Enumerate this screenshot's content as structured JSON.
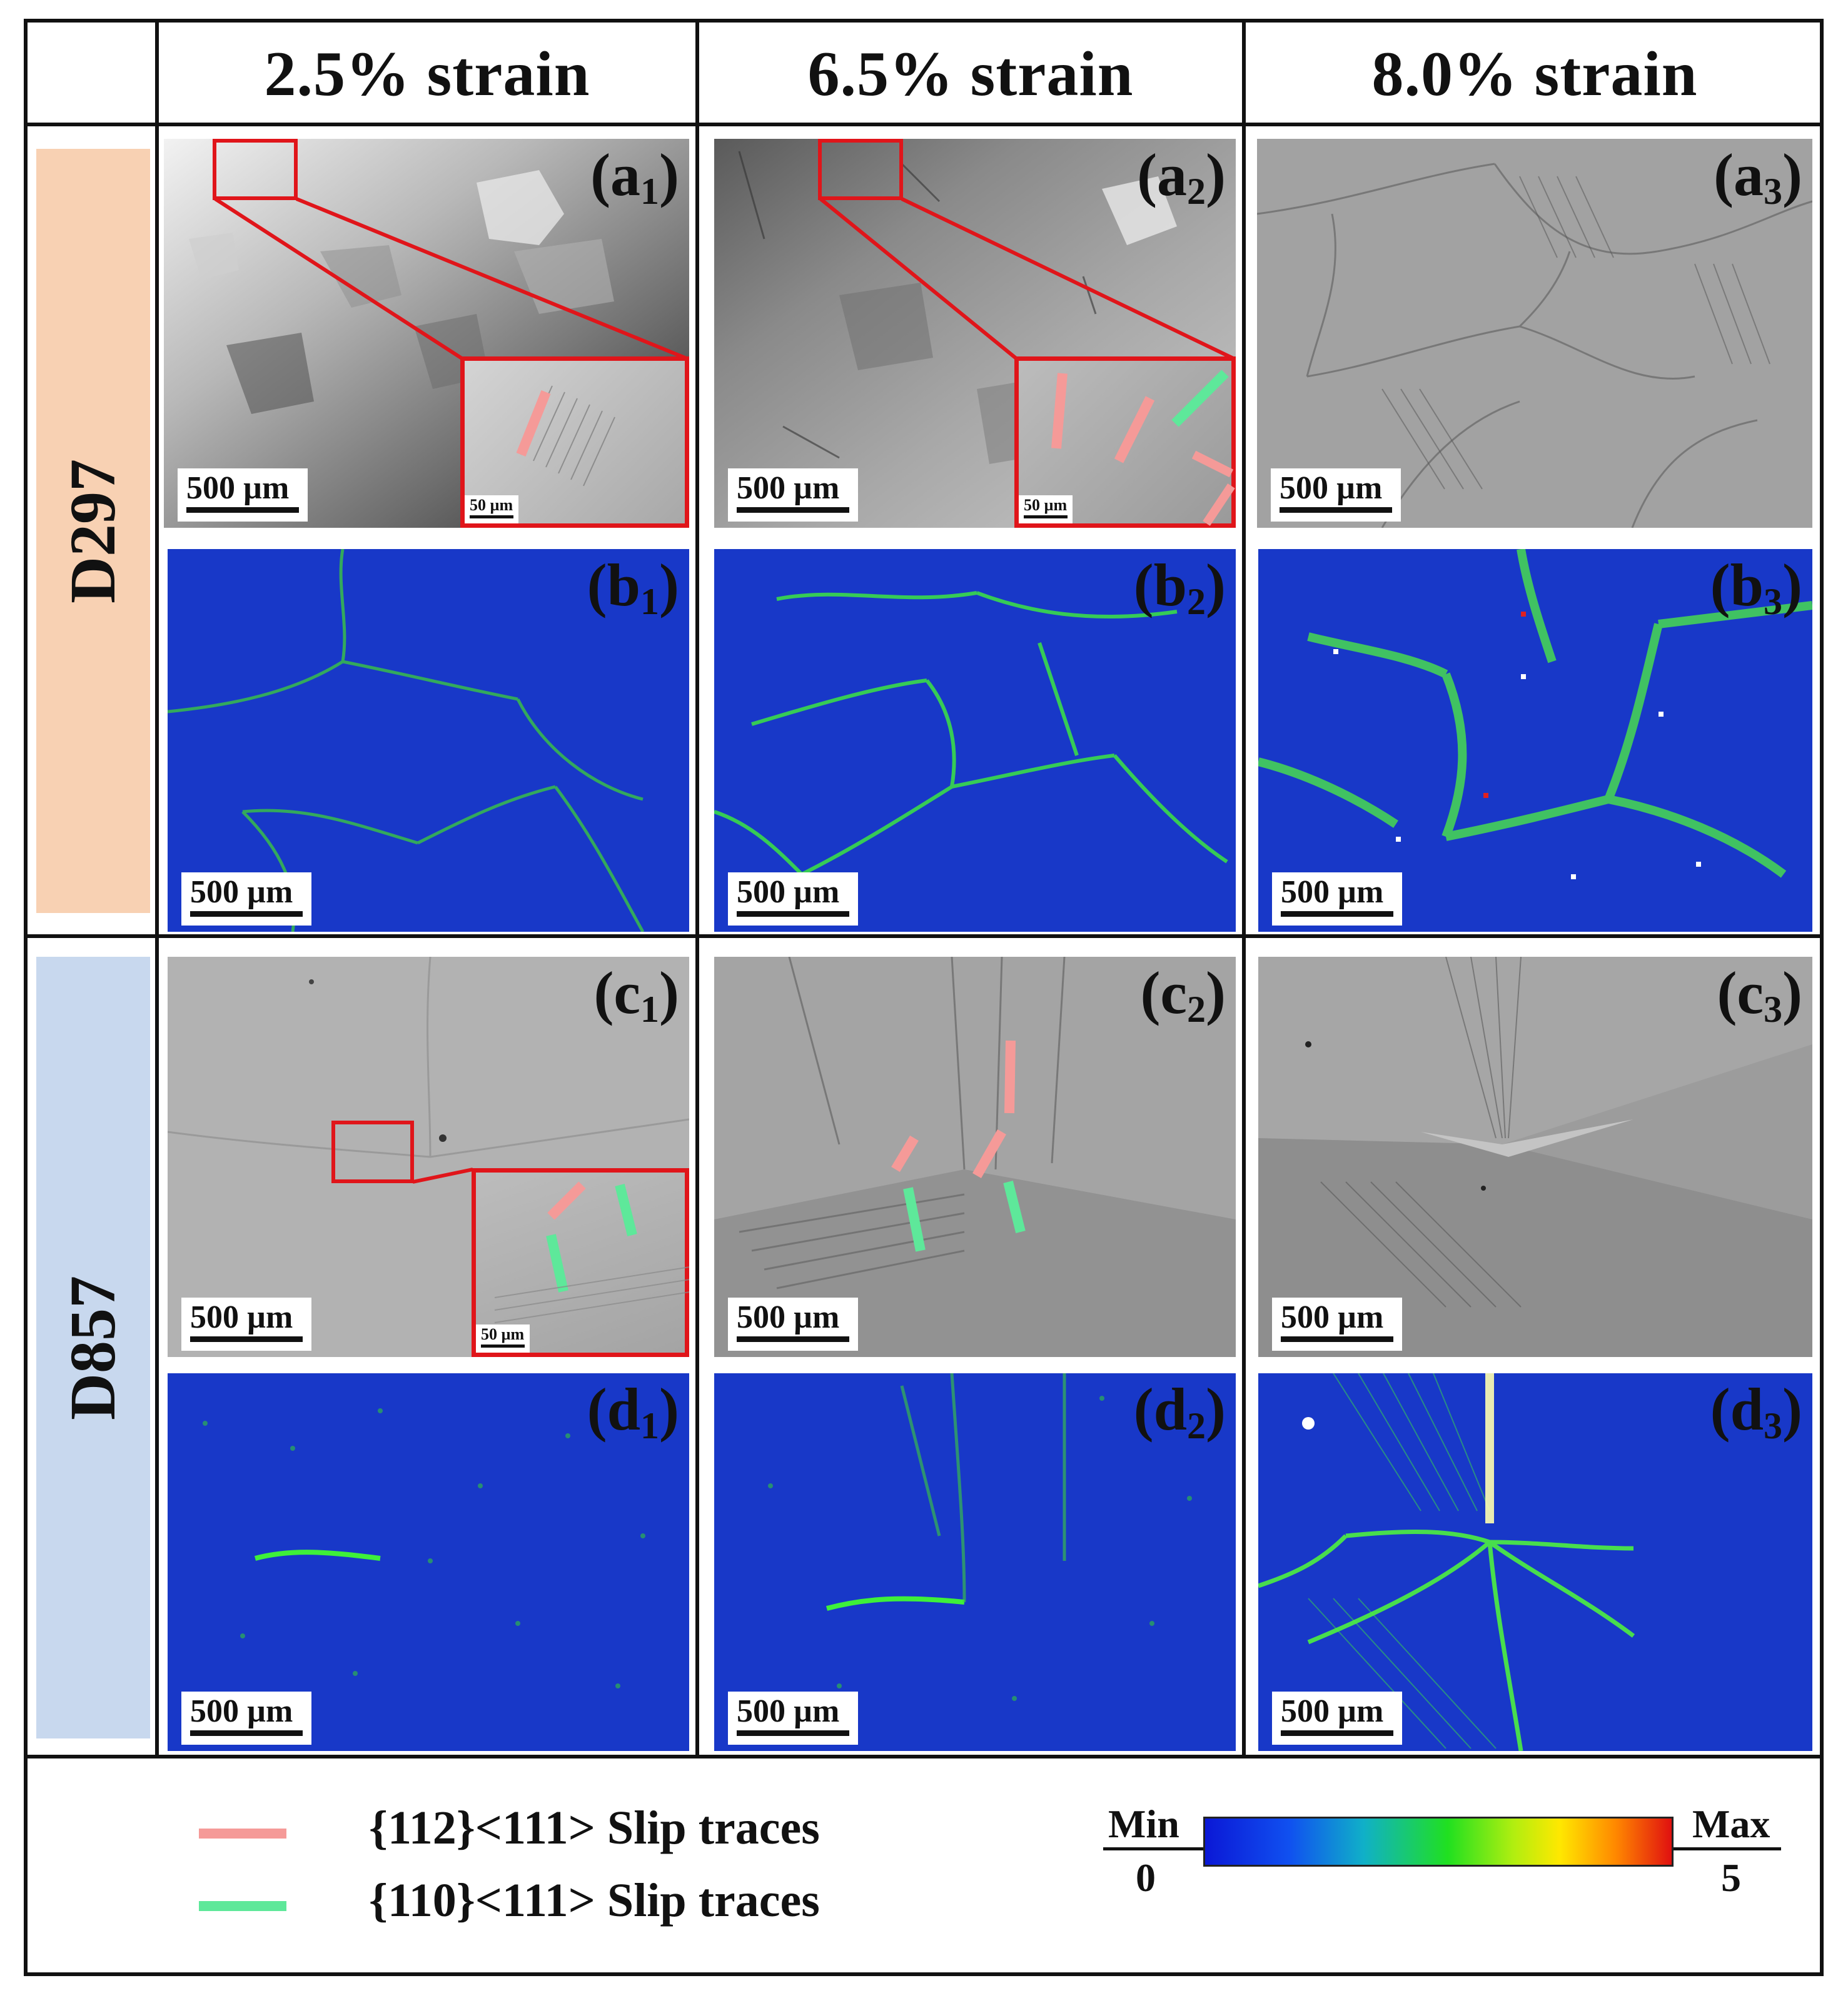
{
  "columns": [
    "2.5% strain",
    "6.5% strain",
    "8.0% strain"
  ],
  "rows": [
    "D297",
    "D857"
  ],
  "row_colors": {
    "D297": "#f8d1b3",
    "D857": "#c8d8ee"
  },
  "panels": {
    "a1": {
      "letter": "a",
      "index": "1",
      "scale": "500 µm",
      "inset_scale": "50 µm"
    },
    "a2": {
      "letter": "a",
      "index": "2",
      "scale": "500 µm",
      "inset_scale": "50 µm"
    },
    "a3": {
      "letter": "a",
      "index": "3",
      "scale": "500 µm"
    },
    "b1": {
      "letter": "b",
      "index": "1",
      "scale": "500 µm"
    },
    "b2": {
      "letter": "b",
      "index": "2",
      "scale": "500 µm"
    },
    "b3": {
      "letter": "b",
      "index": "3",
      "scale": "500 µm"
    },
    "c1": {
      "letter": "c",
      "index": "1",
      "scale": "500 µm",
      "inset_scale": "50 µm"
    },
    "c2": {
      "letter": "c",
      "index": "2",
      "scale": "500 µm"
    },
    "c3": {
      "letter": "c",
      "index": "3",
      "scale": "500 µm"
    },
    "d1": {
      "letter": "d",
      "index": "1",
      "scale": "500 µm"
    },
    "d2": {
      "letter": "d",
      "index": "2",
      "scale": "500 µm"
    },
    "d3": {
      "letter": "d",
      "index": "3",
      "scale": "500 µm"
    }
  },
  "legend": {
    "items": [
      {
        "label": "{112}<111> Slip traces",
        "color": "#f59a98"
      },
      {
        "label": "{110}<111> Slip traces",
        "color": "#5ee89a"
      }
    ],
    "colorbar": {
      "min_label": "Min",
      "max_label": "Max",
      "min_value": "0",
      "max_value": "5"
    }
  },
  "colors": {
    "inset_frame": "#e0151a",
    "kam_base": "#1530c8",
    "kam_high": "#3ef03a"
  }
}
